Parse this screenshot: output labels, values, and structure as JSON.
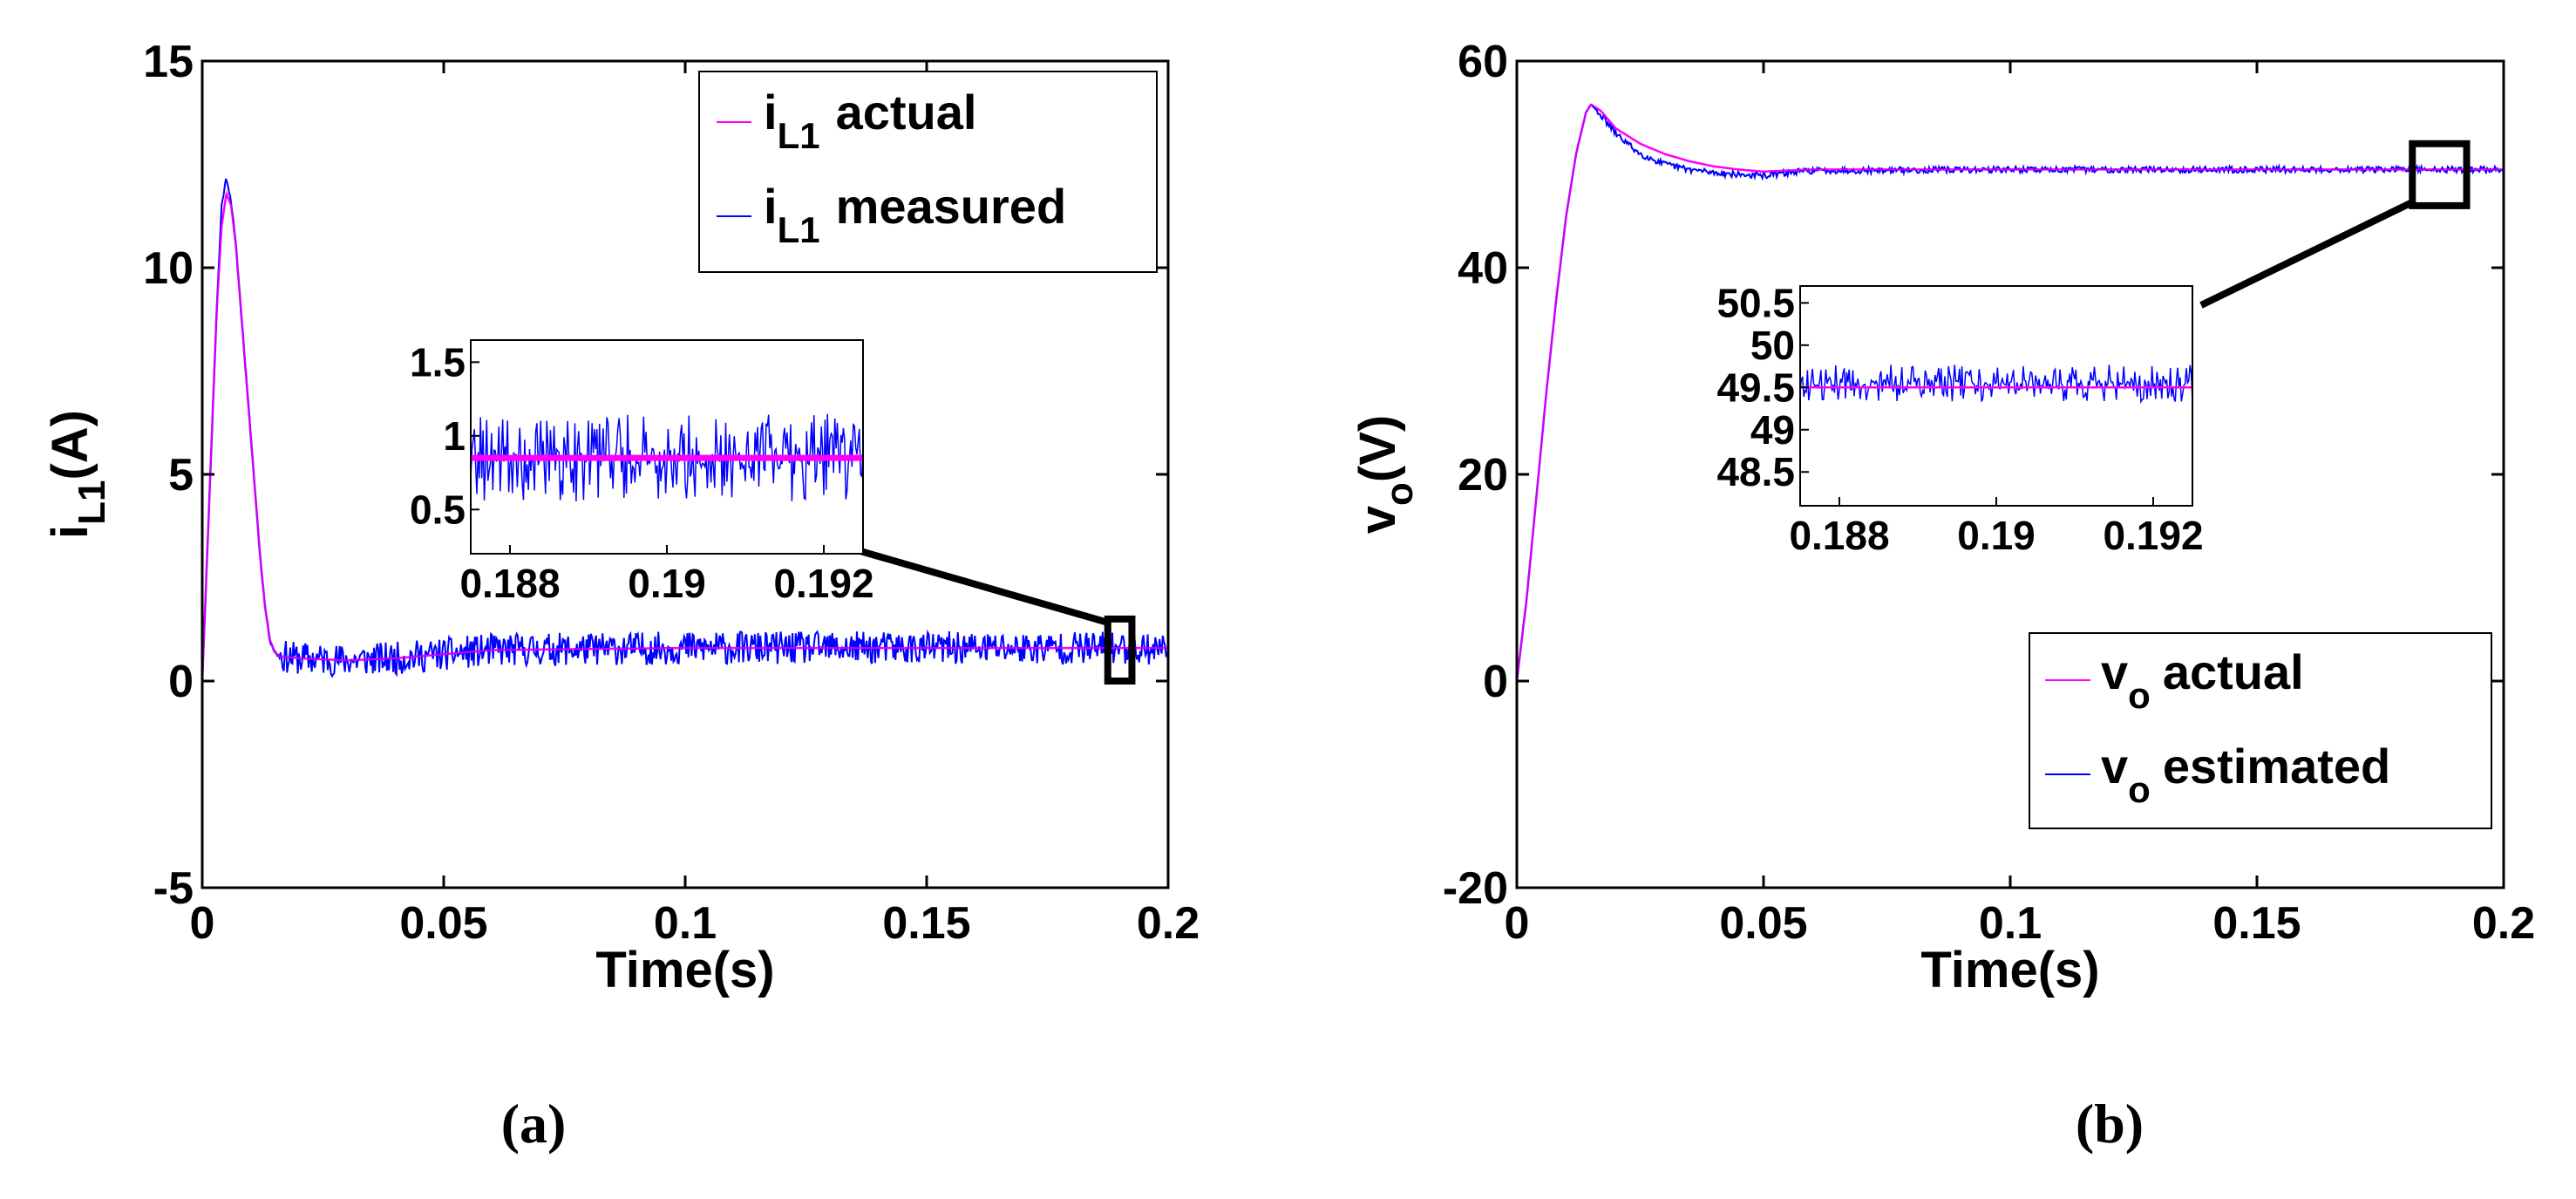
{
  "chart_data": [
    {
      "type": "line",
      "panel_label": "(a)",
      "xlabel": "Time(s)",
      "ylabel": {
        "base": "i",
        "sub": "L1",
        "unit": "(A)"
      },
      "xlim": [
        0,
        0.2
      ],
      "ylim": [
        -5,
        15
      ],
      "xticks": [
        0,
        0.05,
        0.1,
        0.15,
        0.2
      ],
      "xtick_labels": [
        "0",
        "0.05",
        "0.1",
        "0.15",
        "0.2"
      ],
      "yticks": [
        -5,
        0,
        5,
        10,
        15
      ],
      "ytick_labels": [
        "-5",
        "0",
        "5",
        "10",
        "15"
      ],
      "legend": [
        {
          "base": "i",
          "sub": "L1",
          "text": "actual",
          "color": "#ff00ff"
        },
        {
          "base": "i",
          "sub": "L1",
          "text": "measured",
          "color": "#0000ff"
        }
      ],
      "series": [
        {
          "name": "iL1 actual",
          "color": "#ff00ff",
          "x": [
            0,
            0.001,
            0.002,
            0.003,
            0.004,
            0.005,
            0.006,
            0.007,
            0.008,
            0.009,
            0.01,
            0.011,
            0.012,
            0.013,
            0.014,
            0.015,
            0.016,
            0.02,
            0.03,
            0.04,
            0.05,
            0.06,
            0.1,
            0.15,
            0.2
          ],
          "y": [
            0,
            3,
            6,
            9,
            11,
            11.8,
            11.5,
            10.5,
            9,
            7.5,
            6,
            4.5,
            3,
            1.8,
            1,
            0.7,
            0.6,
            0.55,
            0.5,
            0.55,
            0.65,
            0.75,
            0.8,
            0.8,
            0.8
          ]
        },
        {
          "name": "iL1 measured",
          "color": "#0000ff",
          "noise": 0.4,
          "x": [
            0,
            0.001,
            0.002,
            0.003,
            0.004,
            0.005,
            0.006,
            0.007,
            0.008,
            0.009,
            0.01,
            0.011,
            0.012,
            0.013,
            0.014,
            0.015,
            0.016,
            0.02,
            0.03,
            0.04,
            0.05,
            0.06,
            0.1,
            0.15,
            0.2
          ],
          "y": [
            0,
            3,
            6,
            9,
            11.5,
            12.2,
            11.6,
            10.5,
            9,
            7.5,
            6,
            4.5,
            3,
            1.8,
            1,
            0.7,
            0.6,
            0.55,
            0.5,
            0.55,
            0.65,
            0.75,
            0.8,
            0.8,
            0.8
          ]
        }
      ],
      "zoom_box": {
        "xlim": [
          0.1875,
          0.1925
        ],
        "ylim": [
          0,
          1.5
        ]
      },
      "inset": {
        "xlim": [
          0.1875,
          0.1925
        ],
        "ylim": [
          0.2,
          1.65
        ],
        "xticks": [
          0.188,
          0.19,
          0.192
        ],
        "xtick_labels": [
          "0.188",
          "0.19",
          "0.192"
        ],
        "yticks": [
          0.5,
          1,
          1.5
        ],
        "ytick_labels": [
          "0.5",
          "1",
          "1.5"
        ],
        "actual_value": 0.85,
        "measured_mean": 0.85,
        "measured_noise": 0.3
      }
    },
    {
      "type": "line",
      "panel_label": "(b)",
      "xlabel": "Time(s)",
      "ylabel": {
        "base": "v",
        "sub": "o",
        "unit": "(V)"
      },
      "xlim": [
        0,
        0.2
      ],
      "ylim": [
        -20,
        60
      ],
      "xticks": [
        0,
        0.05,
        0.1,
        0.15,
        0.2
      ],
      "xtick_labels": [
        "0",
        "0.05",
        "0.1",
        "0.15",
        "0.2"
      ],
      "yticks": [
        -20,
        0,
        20,
        40,
        60
      ],
      "ytick_labels": [
        "-20",
        "0",
        "20",
        "40",
        "60"
      ],
      "legend": [
        {
          "base": "v",
          "sub": "o",
          "text": "actual",
          "color": "#ff00ff"
        },
        {
          "base": "v",
          "sub": "o",
          "text": "estimated",
          "color": "#0000ff"
        }
      ],
      "series": [
        {
          "name": "vo actual",
          "color": "#ff00ff",
          "x": [
            0,
            0.002,
            0.004,
            0.006,
            0.008,
            0.01,
            0.012,
            0.014,
            0.015,
            0.017,
            0.02,
            0.025,
            0.03,
            0.035,
            0.04,
            0.045,
            0.05,
            0.055,
            0.06,
            0.1,
            0.2
          ],
          "y": [
            0,
            8,
            18,
            28,
            37,
            45,
            51,
            55,
            55.8,
            55.2,
            53.5,
            52,
            51,
            50.3,
            49.8,
            49.5,
            49.3,
            49.4,
            49.5,
            49.5,
            49.5
          ]
        },
        {
          "name": "vo estimated",
          "color": "#0000ff",
          "noise": 0.3,
          "x": [
            0,
            0.002,
            0.004,
            0.006,
            0.008,
            0.01,
            0.012,
            0.014,
            0.015,
            0.017,
            0.02,
            0.025,
            0.03,
            0.035,
            0.04,
            0.045,
            0.05,
            0.055,
            0.06,
            0.1,
            0.2
          ],
          "y": [
            0,
            8,
            18,
            28,
            37,
            45,
            51,
            55,
            55.8,
            54.8,
            53,
            51,
            50,
            49.5,
            49.2,
            49,
            48.9,
            49.2,
            49.4,
            49.5,
            49.5
          ]
        }
      ],
      "zoom_box": {
        "xlim": [
          0.1815,
          0.1925
        ],
        "ylim": [
          46,
          52
        ]
      },
      "inset": {
        "xlim": [
          0.1875,
          0.1925
        ],
        "ylim": [
          48.1,
          50.7
        ],
        "xticks": [
          0.188,
          0.19,
          0.192
        ],
        "xtick_labels": [
          "0.188",
          "0.19",
          "0.192"
        ],
        "yticks": [
          48.5,
          49,
          49.5,
          50,
          50.5
        ],
        "ytick_labels": [
          "48.5",
          "49",
          "49.5",
          "50",
          "50.5"
        ],
        "actual_value": 49.5,
        "measured_mean": 49.55,
        "measured_noise": 0.22
      }
    }
  ]
}
